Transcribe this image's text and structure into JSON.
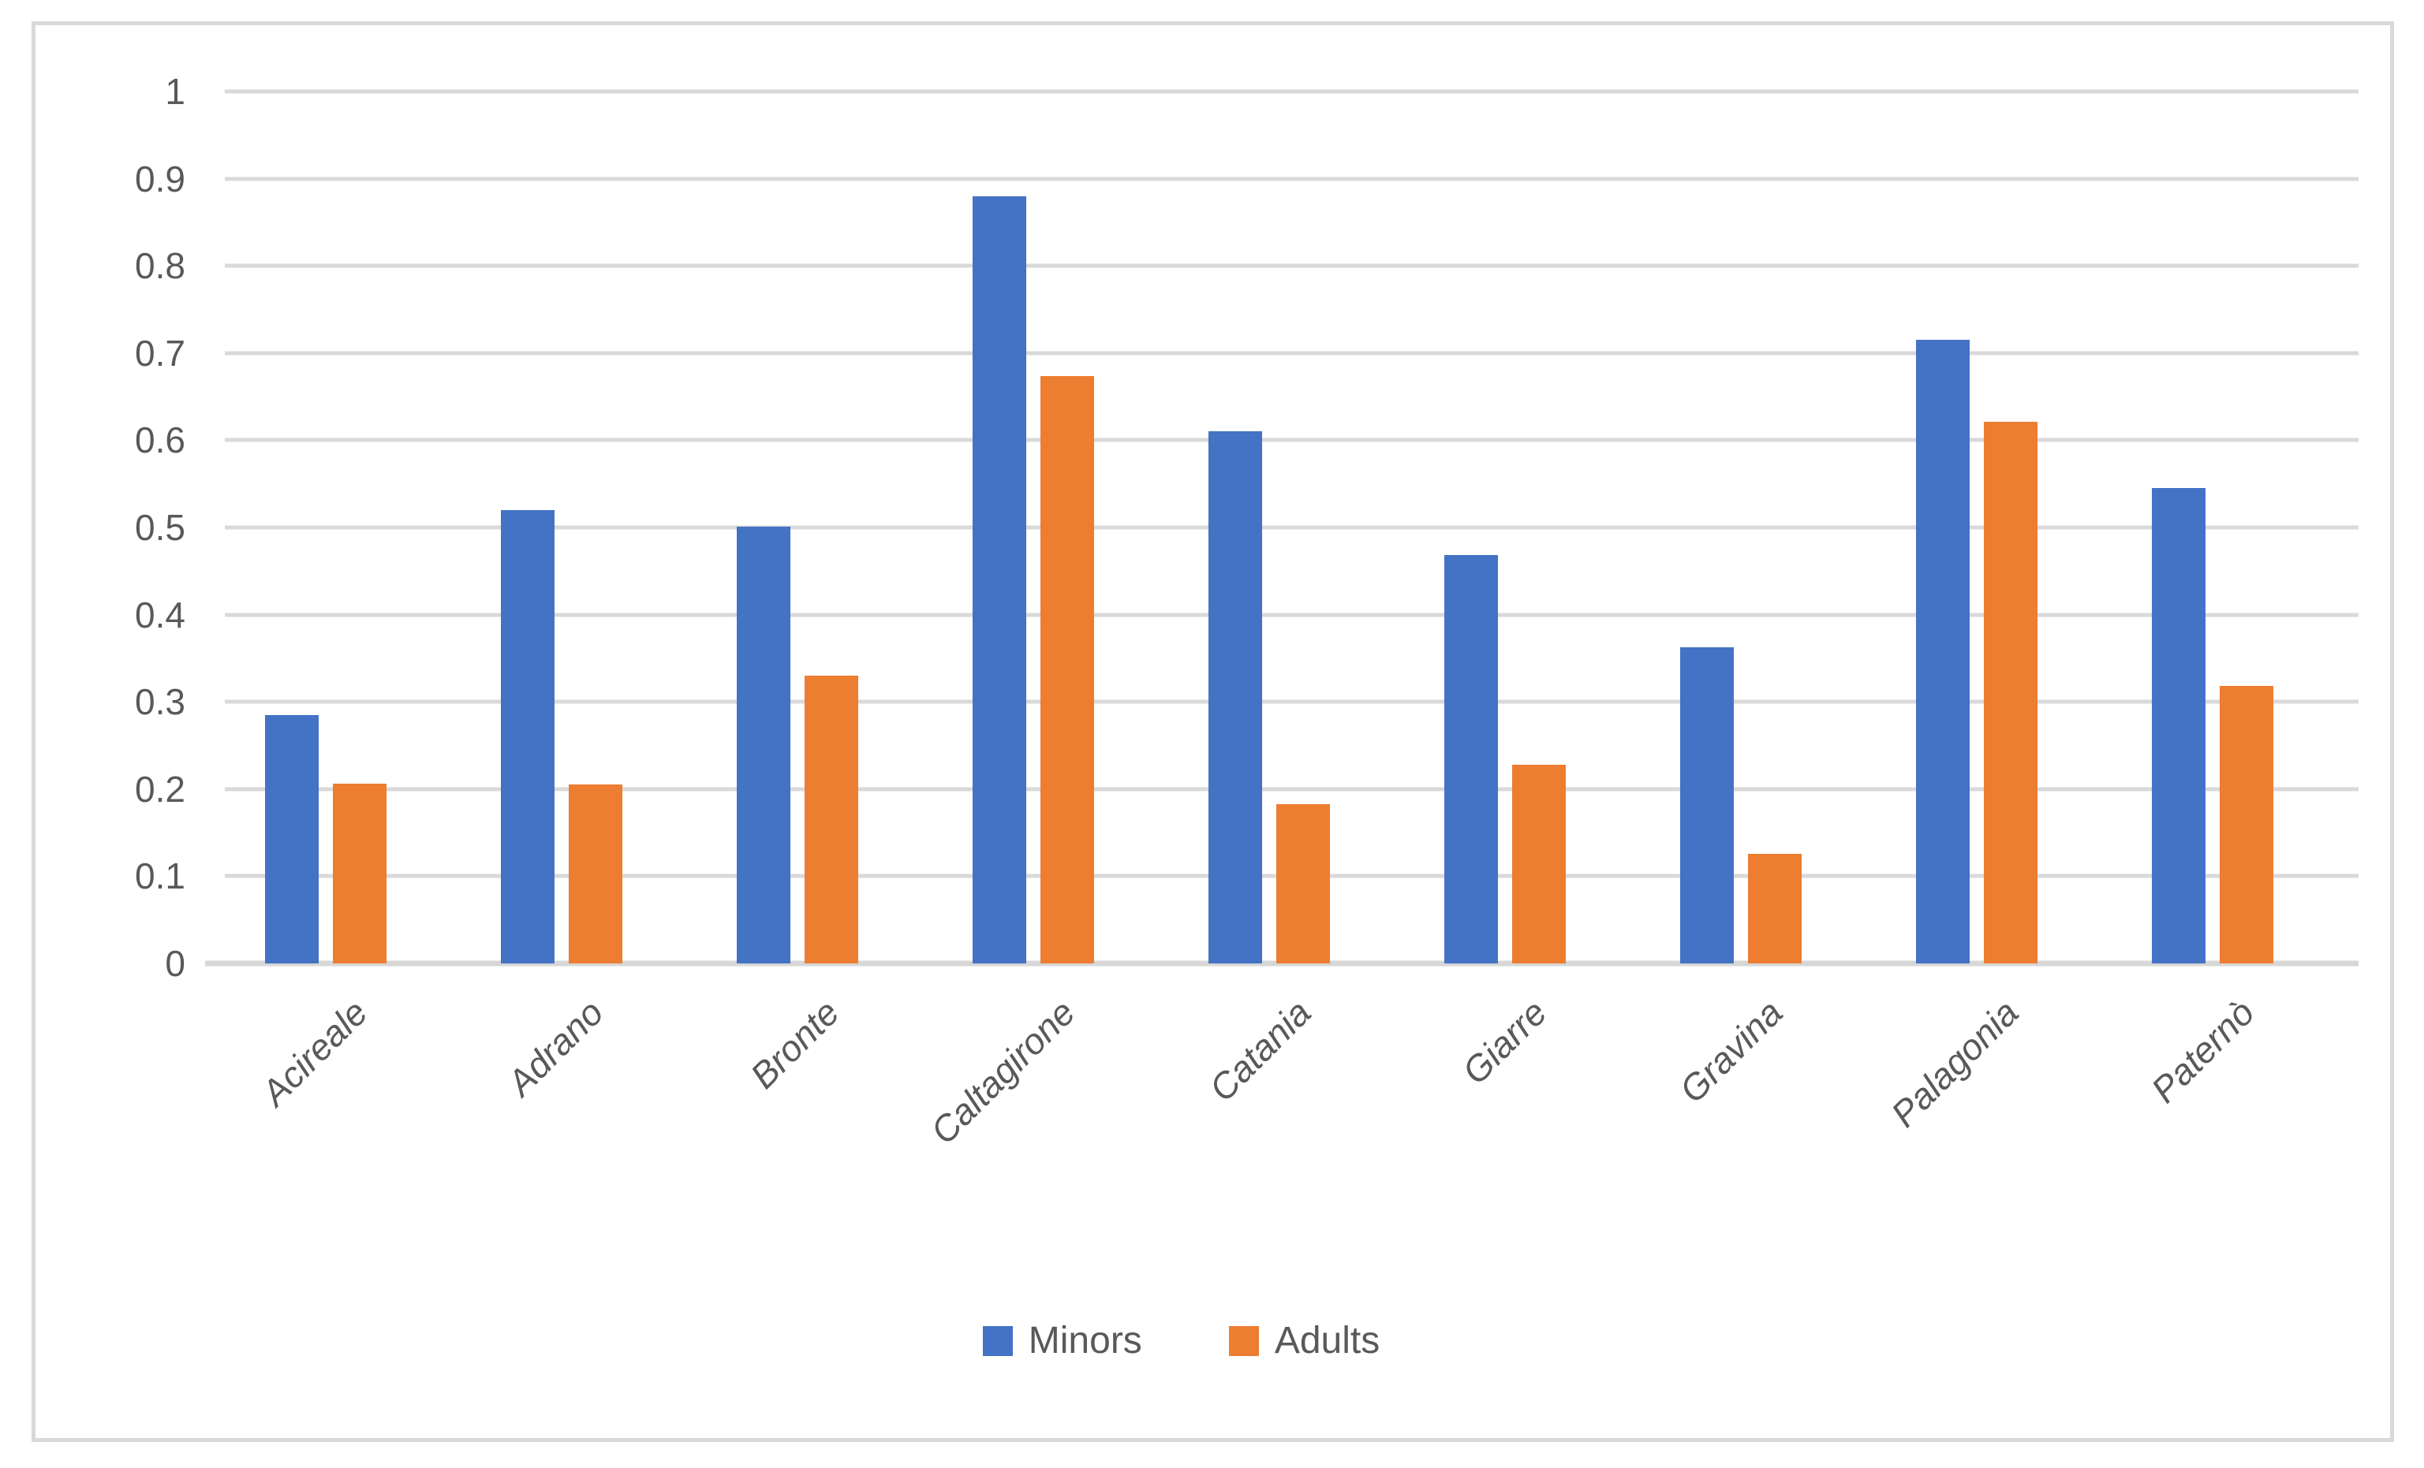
{
  "chart_data": {
    "type": "bar",
    "title": "",
    "categories": [
      "Acireale",
      "Adrano",
      "Bronte",
      "Caltagirone",
      "Catania",
      "Giarre",
      "Gravina",
      "Palagonia",
      "Paternò"
    ],
    "series": [
      {
        "name": "Minors",
        "color": "#4472C4",
        "values": [
          0.285,
          0.52,
          0.501,
          0.88,
          0.61,
          0.468,
          0.363,
          0.715,
          0.545
        ]
      },
      {
        "name": "Adults",
        "color": "#ED7D31",
        "values": [
          0.206,
          0.205,
          0.33,
          0.674,
          0.183,
          0.228,
          0.126,
          0.621,
          0.318
        ]
      }
    ],
    "ylim": [
      0,
      1
    ],
    "ytick_labels": [
      "1",
      "0.9",
      "0.8",
      "0.7",
      "0.6",
      "0.5",
      "0.4",
      "0.3",
      "0.2",
      "0.1",
      "0"
    ],
    "xlabel": "",
    "ylabel": "",
    "grid": true,
    "legend_position": "bottom",
    "tick_label_style": "italic-rotated-45",
    "colors": {
      "gridline": "#D9D9D9",
      "axis_text": "#595959",
      "frame_border": "#D9D9D9",
      "background": "#FFFFFF"
    }
  }
}
